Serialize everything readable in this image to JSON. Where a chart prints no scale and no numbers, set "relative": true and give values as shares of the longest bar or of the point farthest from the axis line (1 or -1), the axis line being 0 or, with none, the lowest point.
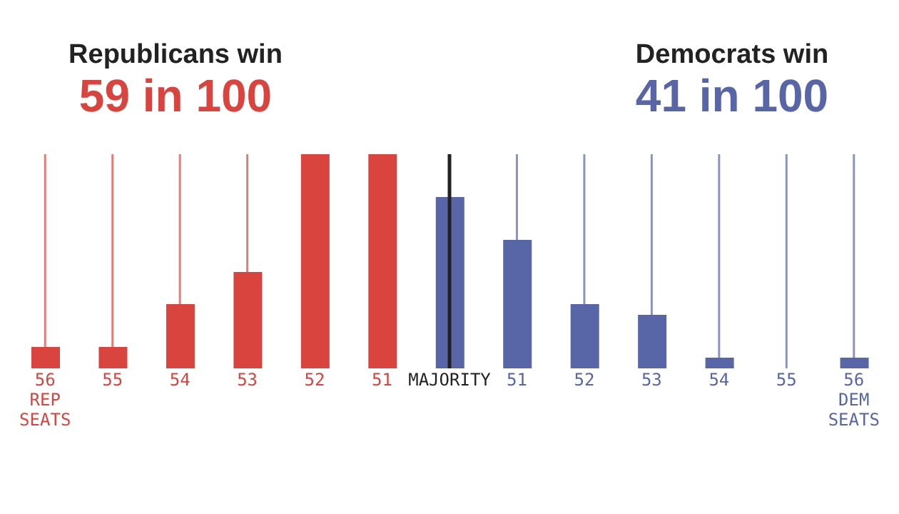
{
  "chart_data": {
    "type": "bar",
    "relative": true,
    "categories": [
      "56 REP SEATS",
      "55",
      "54",
      "53",
      "52",
      "51",
      "MAJORITY",
      "51",
      "52",
      "53",
      "54",
      "55",
      "56 DEM SEATS"
    ],
    "values": [
      0.1,
      0.1,
      0.3,
      0.45,
      1,
      1,
      0.8,
      0.6,
      0.3,
      0.25,
      0.05,
      0,
      0.05
    ],
    "colors": [
      "#d9443f",
      "#d9443f",
      "#d9443f",
      "#d9443f",
      "#d9443f",
      "#d9443f",
      "#5866a8",
      "#5866a8",
      "#5866a8",
      "#5866a8",
      "#5866a8",
      "#5866a8",
      "#5866a8"
    ],
    "ref_lines": [
      {
        "axis": "x",
        "value": "MAJORITY",
        "color": "#222222"
      }
    ],
    "grid": "x",
    "annotations": [
      "Republicans win",
      "59 in 100",
      "Democrats win",
      "41 in 100"
    ]
  }
}
